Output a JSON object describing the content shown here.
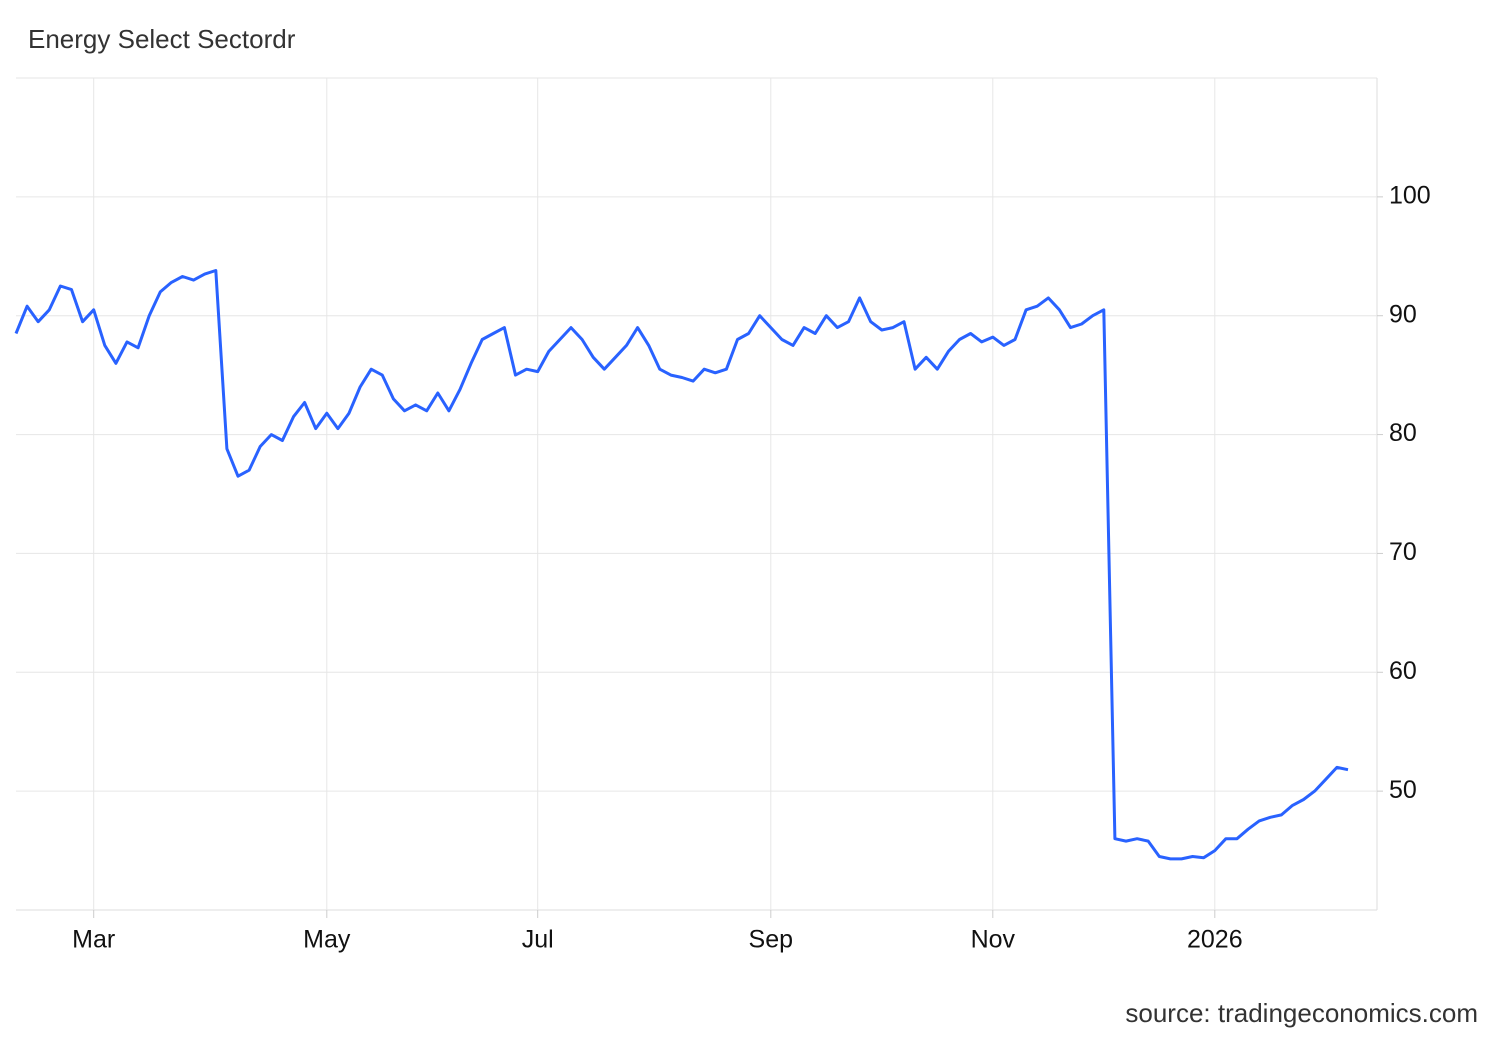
{
  "chart_data": {
    "type": "line",
    "title": "Energy Select Sectordr",
    "source": "source: tradingeconomics.com",
    "categories": [
      null,
      null,
      null,
      null,
      null,
      null,
      null,
      "Mar",
      null,
      null,
      null,
      null,
      null,
      null,
      null,
      null,
      null,
      null,
      null,
      null,
      null,
      null,
      null,
      null,
      null,
      null,
      null,
      null,
      "May",
      null,
      null,
      null,
      null,
      null,
      null,
      null,
      null,
      null,
      null,
      null,
      null,
      null,
      null,
      null,
      null,
      null,
      null,
      "Jul",
      null,
      null,
      null,
      null,
      null,
      null,
      null,
      null,
      null,
      null,
      null,
      null,
      null,
      null,
      null,
      null,
      null,
      null,
      null,
      null,
      "Sep",
      null,
      null,
      null,
      null,
      null,
      null,
      null,
      null,
      null,
      null,
      null,
      null,
      null,
      null,
      null,
      null,
      null,
      null,
      null,
      "Nov",
      null,
      null,
      null,
      null,
      null,
      null,
      null,
      null,
      null,
      null,
      null,
      null,
      null,
      null,
      null,
      null,
      null,
      null,
      null,
      "2026",
      null,
      null,
      null,
      null,
      null,
      null,
      null,
      null,
      null,
      null,
      null,
      null
    ],
    "values": [
      88.5,
      90.8,
      89.5,
      90.5,
      92.5,
      92.2,
      89.5,
      90.5,
      87.5,
      86.0,
      87.8,
      87.3,
      90.0,
      92.0,
      92.8,
      93.3,
      93.0,
      93.5,
      93.8,
      78.8,
      76.5,
      77.0,
      79.0,
      80.0,
      79.5,
      81.5,
      82.7,
      80.5,
      81.8,
      80.5,
      81.8,
      84.0,
      85.5,
      85.0,
      83.0,
      82.0,
      82.5,
      82.0,
      83.5,
      82.0,
      83.8,
      86.0,
      88.0,
      88.5,
      89.0,
      85.0,
      85.5,
      85.3,
      87.0,
      88.0,
      89.0,
      88.0,
      86.5,
      85.5,
      86.5,
      87.5,
      89.0,
      87.5,
      85.5,
      85.0,
      84.8,
      84.5,
      85.5,
      85.2,
      85.5,
      88.0,
      88.5,
      90.0,
      89.0,
      88.0,
      87.5,
      89.0,
      88.5,
      90.0,
      89.0,
      89.5,
      91.5,
      89.5,
      88.8,
      89.0,
      89.5,
      85.5,
      86.5,
      85.5,
      87.0,
      88.0,
      88.5,
      87.8,
      88.2,
      87.5,
      88.0,
      90.5,
      90.8,
      91.5,
      90.5,
      89.0,
      89.3,
      90.0,
      90.5,
      46.0,
      45.8,
      46.0,
      45.8,
      44.5,
      44.3,
      44.3,
      44.5,
      44.4,
      45.0,
      46.0,
      46.0,
      46.8,
      47.5,
      47.8,
      48.0,
      48.8,
      49.3,
      50.0,
      51.0,
      52.0,
      51.8
    ],
    "color": "#2962ff",
    "ylim": [
      40,
      110
    ],
    "yticks": [
      50,
      60,
      70,
      80,
      90,
      100
    ],
    "grid": true,
    "y_axis_side": "right"
  }
}
